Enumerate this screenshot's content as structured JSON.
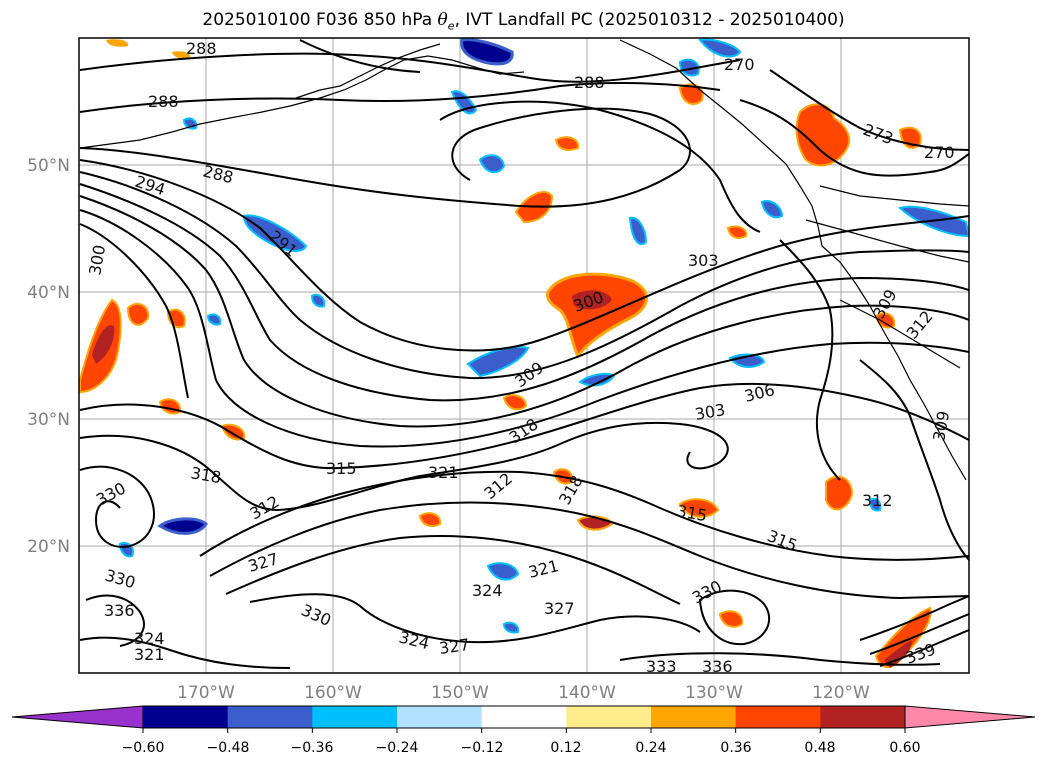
{
  "title": {
    "prefix": "2025010100 F036 850 hPa ",
    "theta_symbol": "θ",
    "theta_subscript": "e",
    "suffix": ", IVT Landfall PC (2025010312 - 2025010400)"
  },
  "map": {
    "lat_labels": [
      "50°N",
      "40°N",
      "30°N",
      "20°N"
    ],
    "lon_labels": [
      "170°W",
      "160°W",
      "150°W",
      "140°W",
      "130°W",
      "120°W"
    ]
  },
  "contour_labels": [
    "288",
    "288",
    "288",
    "288",
    "294",
    "291",
    "300",
    "300",
    "303",
    "303",
    "306",
    "309",
    "309",
    "312",
    "312",
    "312",
    "315",
    "315",
    "315",
    "318",
    "318",
    "318",
    "321",
    "321",
    "324",
    "324",
    "324",
    "327",
    "327",
    "327",
    "330",
    "330",
    "330",
    "330",
    "333",
    "336",
    "339",
    "270",
    "270",
    "273",
    "309",
    "312",
    "336",
    "321"
  ],
  "colorbar": {
    "ticks": [
      "−0.60",
      "−0.48",
      "−0.36",
      "−0.24",
      "−0.12",
      "0.12",
      "0.24",
      "0.36",
      "0.48",
      "0.60"
    ],
    "colors": {
      "under": "#9932CC",
      "bins": [
        "#000090",
        "#3A5FCD",
        "#00BFFF",
        "#B0E2FF",
        "#FFFFFF",
        "#FFEC8B",
        "#FFA500",
        "#FF4500",
        "#B22222"
      ],
      "over": "#FF88AA"
    }
  }
}
